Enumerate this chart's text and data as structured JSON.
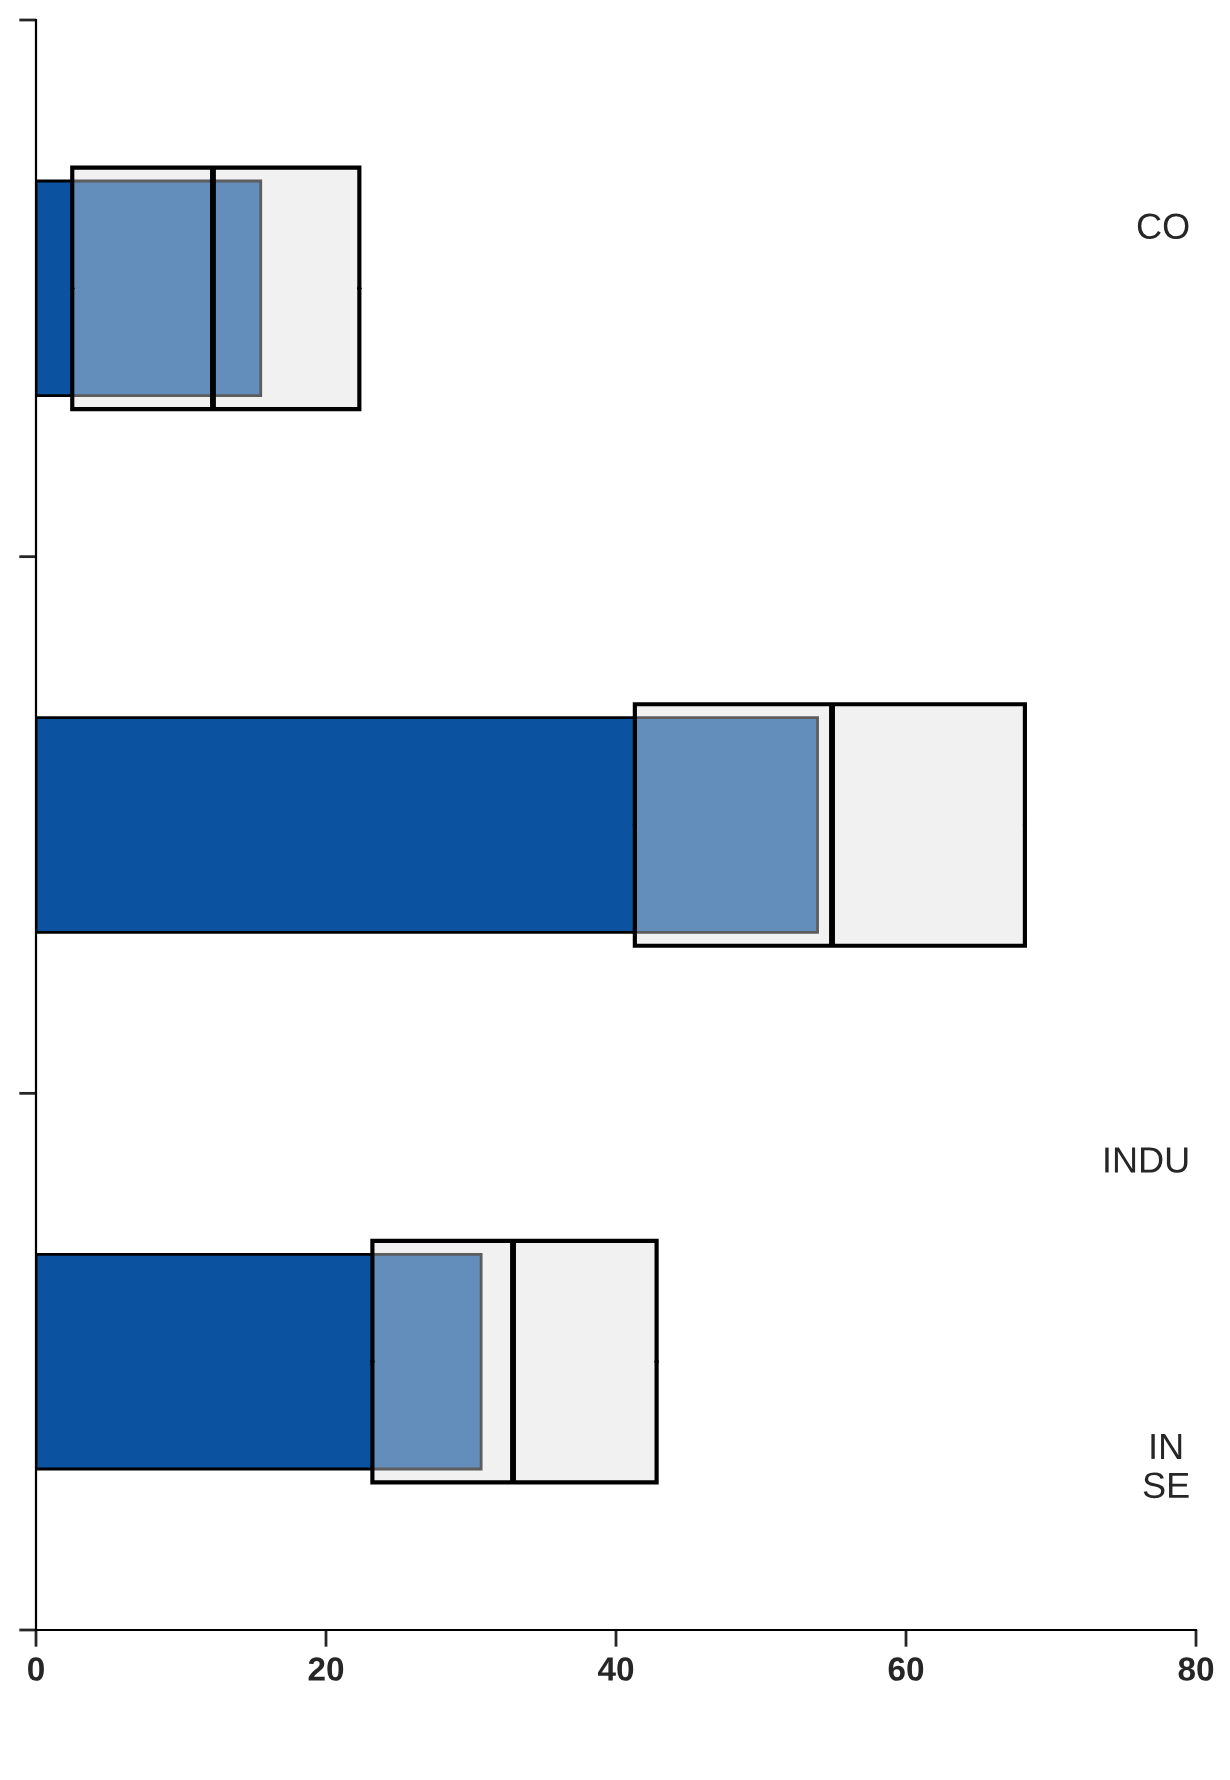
{
  "chart_data": {
    "type": "bar",
    "orientation": "horizontal",
    "categories": [
      null,
      null,
      null
    ],
    "series": [
      {
        "color": "#0b53a0",
        "values": [
          15.5,
          53.9,
          30.7
        ]
      },
      {
        "type": "box",
        "color": "#dddddd",
        "boxes": [
          {
            "low": 2.5,
            "q1": 2.5,
            "median": 12.2,
            "q3": 22.3,
            "high": 22.3
          },
          {
            "low": 41.3,
            "q1": 41.3,
            "median": 54.9,
            "q3": 68.2,
            "high": 68.2
          },
          {
            "low": 23.2,
            "q1": 23.2,
            "median": 32.9,
            "q3": 42.8,
            "high": 42.8
          }
        ]
      }
    ],
    "xlim": [
      0,
      80
    ],
    "xticks": [
      0,
      20,
      40,
      60,
      80
    ],
    "grid": false,
    "legend": false,
    "annotations": [
      "CO",
      "INDU",
      "IN\nSE"
    ]
  }
}
